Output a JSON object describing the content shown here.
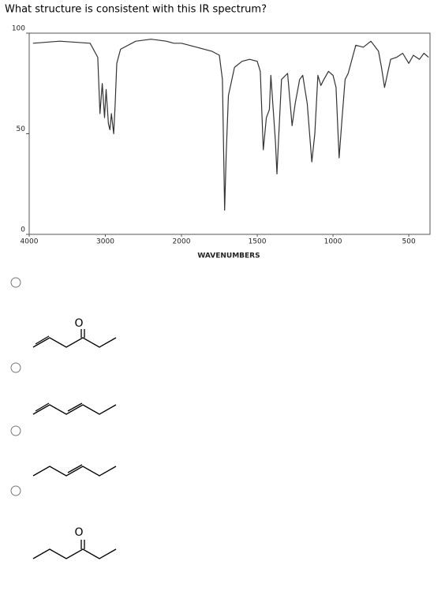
{
  "question": "What structure is consistent with this IR spectrum?",
  "chart_data": {
    "type": "line",
    "xlabel": "WAVENUMBERS",
    "color": "#333333",
    "xlim": [
      4000,
      360
    ],
    "x_break": 2000,
    "ylim": [
      0,
      100
    ],
    "xticks": [
      4000,
      3000,
      2000,
      1500,
      1000,
      500
    ],
    "yticks": [
      0,
      50,
      100
    ],
    "x": [
      3950,
      3600,
      3200,
      3100,
      3070,
      3040,
      3010,
      2990,
      2960,
      2940,
      2920,
      2890,
      2870,
      2850,
      2800,
      2600,
      2400,
      2200,
      2100,
      2000,
      1900,
      1800,
      1750,
      1730,
      1715,
      1705,
      1690,
      1650,
      1600,
      1550,
      1500,
      1480,
      1460,
      1440,
      1420,
      1410,
      1380,
      1370,
      1360,
      1340,
      1300,
      1270,
      1250,
      1220,
      1200,
      1170,
      1140,
      1120,
      1100,
      1080,
      1060,
      1030,
      1000,
      980,
      960,
      940,
      920,
      900,
      850,
      800,
      750,
      700,
      680,
      660,
      640,
      620,
      580,
      540,
      500,
      470,
      430,
      400,
      370
    ],
    "values": [
      95,
      96,
      95,
      88,
      60,
      75,
      58,
      72,
      55,
      52,
      60,
      50,
      65,
      85,
      92,
      96,
      97,
      96,
      95,
      95,
      93,
      91,
      89,
      77,
      12,
      40,
      69,
      83,
      86,
      87,
      86,
      81,
      42,
      58,
      62,
      79,
      46,
      30,
      46,
      77,
      80,
      54,
      65,
      77,
      79,
      65,
      36,
      50,
      79,
      74,
      77,
      81,
      79,
      73,
      38,
      58,
      77,
      80,
      94,
      93,
      96,
      91,
      83,
      73,
      80,
      87,
      88,
      90,
      85,
      89,
      87,
      90,
      88
    ]
  },
  "options": [
    {
      "atom_labels": [
        "O"
      ]
    },
    {
      "atom_labels": []
    },
    {
      "atom_labels": []
    },
    {
      "atom_labels": [
        "O"
      ]
    }
  ]
}
